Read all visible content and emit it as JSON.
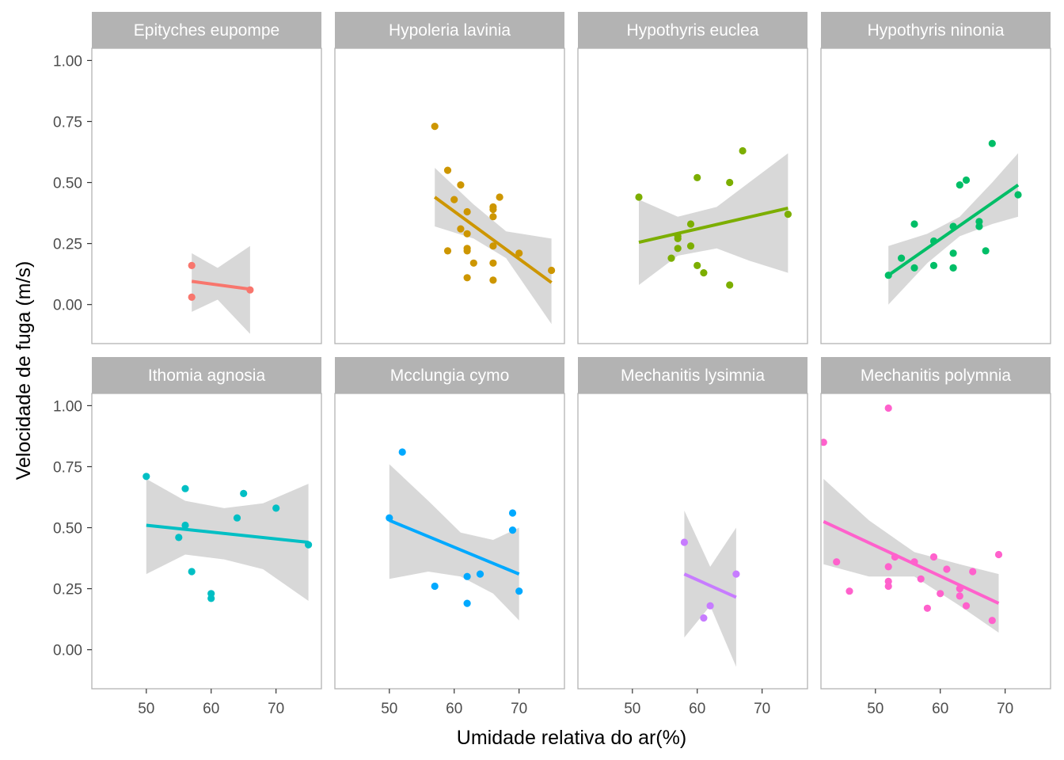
{
  "chart_data": {
    "type": "scatter",
    "title": "",
    "xlabel": "Umidade relativa do ar(%)",
    "ylabel": "Velocidade de fuga (m/s)",
    "xlim": [
      41.6,
      77.0
    ],
    "ylim": [
      -0.16,
      1.05
    ],
    "xticks": [
      50,
      60,
      70
    ],
    "yticks": [
      0.0,
      0.25,
      0.5,
      0.75,
      1.0
    ],
    "ytick_labels": [
      "0.00",
      "0.25",
      "0.50",
      "0.75",
      "1.00"
    ],
    "grid": false,
    "legend": "none",
    "fit": "linear regression with 95% confidence band",
    "band_color": "#d3d3d3",
    "strip_color": "#b3b3b3",
    "panels": [
      {
        "name": "Epityches eupompe",
        "color": "#F8766D",
        "points": [
          [
            57,
            0.16
          ],
          [
            57,
            0.03
          ],
          [
            66,
            0.06
          ]
        ],
        "fit_line": [
          [
            57,
            0.095
          ],
          [
            66,
            0.063
          ]
        ],
        "band": [
          [
            57,
            -0.03,
            0.21
          ],
          [
            61,
            0.02,
            0.15
          ],
          [
            66,
            -0.12,
            0.24
          ]
        ]
      },
      {
        "name": "Hypoleria lavinia",
        "color": "#CD9600",
        "points": [
          [
            57,
            0.73
          ],
          [
            59,
            0.55
          ],
          [
            61,
            0.49
          ],
          [
            60,
            0.43
          ],
          [
            62,
            0.38
          ],
          [
            66,
            0.4
          ],
          [
            66,
            0.39
          ],
          [
            67,
            0.44
          ],
          [
            66,
            0.36
          ],
          [
            61,
            0.31
          ],
          [
            62,
            0.29
          ],
          [
            59,
            0.22
          ],
          [
            62,
            0.23
          ],
          [
            62,
            0.22
          ],
          [
            66,
            0.24
          ],
          [
            70,
            0.21
          ],
          [
            63,
            0.17
          ],
          [
            66,
            0.17
          ],
          [
            62,
            0.11
          ],
          [
            66,
            0.1
          ],
          [
            75,
            0.14
          ]
        ],
        "fit_line": [
          [
            57,
            0.44
          ],
          [
            75,
            0.09
          ]
        ],
        "band": [
          [
            57,
            0.32,
            0.56
          ],
          [
            63,
            0.27,
            0.41
          ],
          [
            68,
            0.19,
            0.3
          ],
          [
            75,
            -0.08,
            0.27
          ]
        ]
      },
      {
        "name": "Hypothyris euclea",
        "color": "#7CAE00",
        "points": [
          [
            51,
            0.44
          ],
          [
            67,
            0.63
          ],
          [
            60,
            0.52
          ],
          [
            65,
            0.5
          ],
          [
            59,
            0.33
          ],
          [
            57,
            0.28
          ],
          [
            57,
            0.27
          ],
          [
            57,
            0.23
          ],
          [
            59,
            0.24
          ],
          [
            56,
            0.19
          ],
          [
            60,
            0.16
          ],
          [
            61,
            0.13
          ],
          [
            65,
            0.08
          ],
          [
            74,
            0.37
          ]
        ],
        "fit_line": [
          [
            51,
            0.255
          ],
          [
            74,
            0.395
          ]
        ],
        "band": [
          [
            51,
            0.08,
            0.43
          ],
          [
            57,
            0.2,
            0.36
          ],
          [
            63,
            0.23,
            0.4
          ],
          [
            68,
            0.18,
            0.5
          ],
          [
            74,
            0.13,
            0.62
          ]
        ]
      },
      {
        "name": "Hypothyris ninonia",
        "color": "#00BE67",
        "points": [
          [
            52,
            0.12
          ],
          [
            54,
            0.19
          ],
          [
            56,
            0.33
          ],
          [
            56,
            0.15
          ],
          [
            59,
            0.26
          ],
          [
            59,
            0.16
          ],
          [
            62,
            0.32
          ],
          [
            62,
            0.21
          ],
          [
            62,
            0.15
          ],
          [
            62,
            0.15
          ],
          [
            63,
            0.49
          ],
          [
            64,
            0.51
          ],
          [
            66,
            0.34
          ],
          [
            66,
            0.32
          ],
          [
            67,
            0.22
          ],
          [
            68,
            0.66
          ],
          [
            72,
            0.45
          ]
        ],
        "fit_line": [
          [
            52,
            0.12
          ],
          [
            72,
            0.49
          ]
        ],
        "band": [
          [
            52,
            0.0,
            0.24
          ],
          [
            58,
            0.17,
            0.29
          ],
          [
            63,
            0.28,
            0.36
          ],
          [
            68,
            0.33,
            0.5
          ],
          [
            72,
            0.36,
            0.62
          ]
        ]
      },
      {
        "name": "Ithomia agnosia",
        "color": "#00BFC4",
        "points": [
          [
            50,
            0.71
          ],
          [
            56,
            0.66
          ],
          [
            56,
            0.51
          ],
          [
            55,
            0.46
          ],
          [
            57,
            0.32
          ],
          [
            60,
            0.23
          ],
          [
            60,
            0.21
          ],
          [
            64,
            0.54
          ],
          [
            65,
            0.64
          ],
          [
            70,
            0.58
          ],
          [
            75,
            0.43
          ]
        ],
        "fit_line": [
          [
            50,
            0.51
          ],
          [
            75,
            0.44
          ]
        ],
        "band": [
          [
            50,
            0.31,
            0.7
          ],
          [
            56,
            0.39,
            0.61
          ],
          [
            62,
            0.37,
            0.58
          ],
          [
            68,
            0.33,
            0.6
          ],
          [
            75,
            0.2,
            0.68
          ]
        ]
      },
      {
        "name": "Mcclungia cymo",
        "color": "#00A9FF",
        "points": [
          [
            50,
            0.54
          ],
          [
            52,
            0.81
          ],
          [
            57,
            0.26
          ],
          [
            62,
            0.3
          ],
          [
            62,
            0.19
          ],
          [
            64,
            0.31
          ],
          [
            69,
            0.56
          ],
          [
            69,
            0.49
          ],
          [
            70,
            0.24
          ]
        ],
        "fit_line": [
          [
            50,
            0.53
          ],
          [
            70,
            0.31
          ]
        ],
        "band": [
          [
            50,
            0.29,
            0.76
          ],
          [
            56,
            0.32,
            0.61
          ],
          [
            61,
            0.3,
            0.48
          ],
          [
            66,
            0.23,
            0.45
          ],
          [
            70,
            0.12,
            0.5
          ]
        ]
      },
      {
        "name": "Mechanitis lysimnia",
        "color": "#C77CFF",
        "points": [
          [
            58,
            0.44
          ],
          [
            62,
            0.18
          ],
          [
            61,
            0.13
          ],
          [
            66,
            0.31
          ]
        ],
        "fit_line": [
          [
            58,
            0.31
          ],
          [
            66,
            0.215
          ]
        ],
        "band": [
          [
            58,
            0.05,
            0.57
          ],
          [
            62,
            0.18,
            0.34
          ],
          [
            66,
            -0.07,
            0.5
          ]
        ]
      },
      {
        "name": "Mechanitis polymnia",
        "color": "#FF61CC",
        "points": [
          [
            42,
            0.85
          ],
          [
            52,
            0.99
          ],
          [
            44,
            0.36
          ],
          [
            46,
            0.24
          ],
          [
            52,
            0.34
          ],
          [
            52,
            0.28
          ],
          [
            52,
            0.26
          ],
          [
            53,
            0.38
          ],
          [
            56,
            0.36
          ],
          [
            57,
            0.29
          ],
          [
            58,
            0.17
          ],
          [
            59,
            0.38
          ],
          [
            60,
            0.23
          ],
          [
            61,
            0.33
          ],
          [
            63,
            0.22
          ],
          [
            63,
            0.25
          ],
          [
            64,
            0.18
          ],
          [
            65,
            0.32
          ],
          [
            68,
            0.12
          ],
          [
            69,
            0.39
          ]
        ],
        "fit_line": [
          [
            42,
            0.525
          ],
          [
            69,
            0.19
          ]
        ],
        "band": [
          [
            42,
            0.35,
            0.7
          ],
          [
            49,
            0.3,
            0.53
          ],
          [
            56,
            0.3,
            0.4
          ],
          [
            63,
            0.18,
            0.35
          ],
          [
            69,
            0.07,
            0.31
          ]
        ]
      }
    ]
  }
}
